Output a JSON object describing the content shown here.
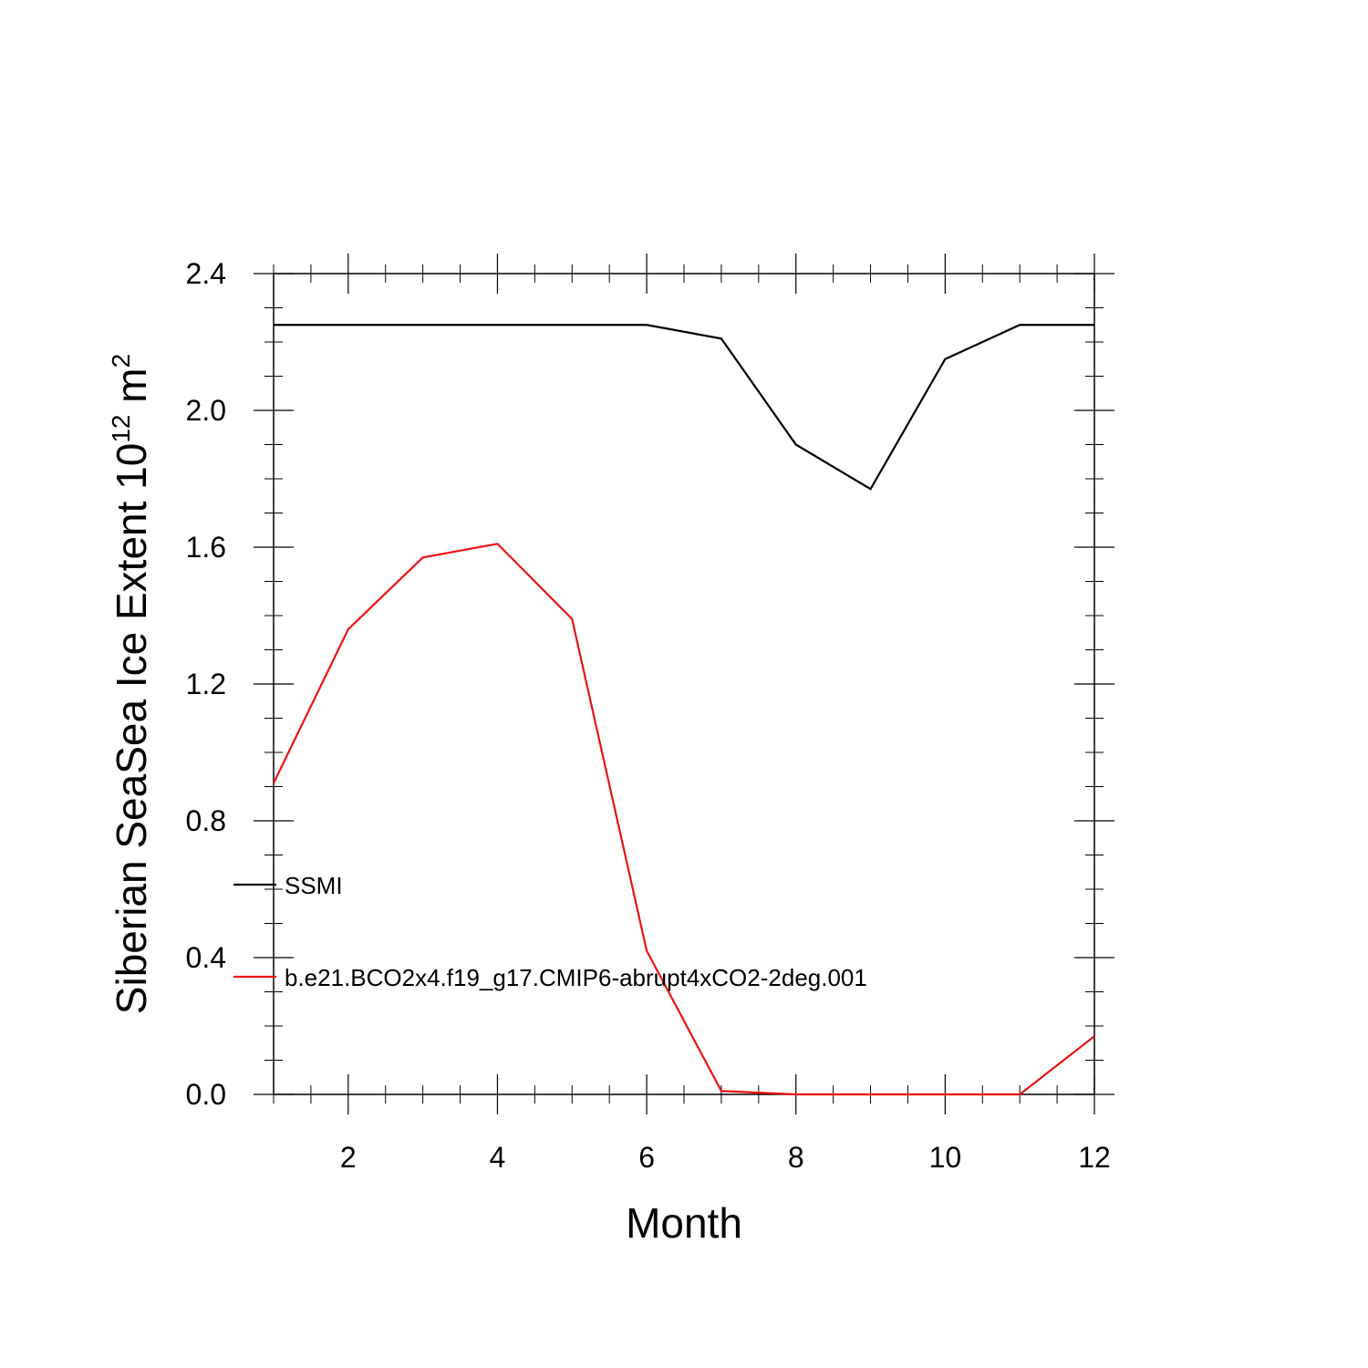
{
  "chart_data": {
    "type": "line",
    "xlabel": "Month",
    "ylabel_prefix": "Siberian SeaSea Ice Extent 10",
    "ylabel_exponent": "12",
    "ylabel_unit": " m",
    "ylabel_unit_exponent": "2",
    "xlim": [
      1,
      12
    ],
    "ylim": [
      0,
      2.4
    ],
    "x_ticks": [
      2,
      4,
      6,
      8,
      10,
      12
    ],
    "x_tick_labels": [
      "2",
      "4",
      "6",
      "8",
      "10",
      "12"
    ],
    "y_ticks": [
      0,
      0.4,
      0.8,
      1.2,
      1.6,
      2.0,
      2.4
    ],
    "y_tick_labels": [
      "0.0",
      "0.4",
      "0.8",
      "1.2",
      "1.6",
      "2.0",
      "2.4"
    ],
    "grid": false,
    "legend_position": "left-inside",
    "x": [
      1,
      2,
      3,
      4,
      5,
      6,
      7,
      8,
      9,
      10,
      11,
      12
    ],
    "series": [
      {
        "name": "SSMI",
        "color": "#000000",
        "values": [
          2.25,
          2.25,
          2.25,
          2.25,
          2.25,
          2.25,
          2.21,
          1.9,
          1.77,
          2.15,
          2.25,
          2.25
        ]
      },
      {
        "name": "b.e21.BCO2x4.f19_g17.CMIP6-abrupt4xCO2-2deg.001",
        "color": "#ee1111",
        "values": [
          0.91,
          1.36,
          1.57,
          1.61,
          1.39,
          0.42,
          0.01,
          0.0,
          0.0,
          0.0,
          0.0,
          0.17
        ]
      }
    ]
  }
}
